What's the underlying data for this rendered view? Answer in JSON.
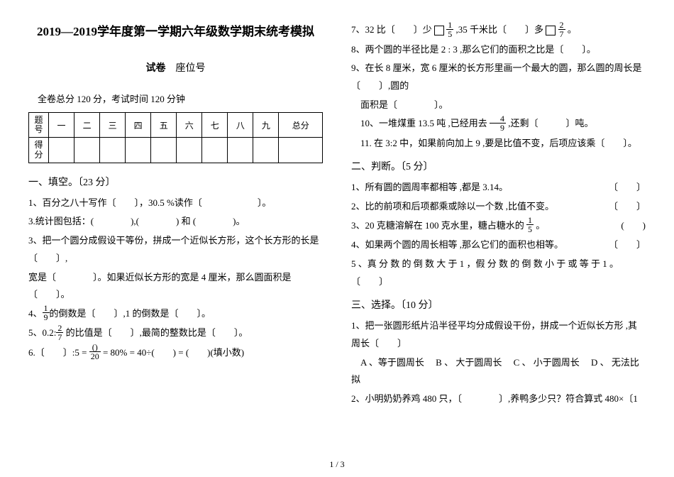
{
  "title": "2019—2019学年度第一学期六年级数学期末统考模拟",
  "subtitle_bold": "试卷",
  "subtitle_rest": "　座位号",
  "info": "全卷总分 120 分，考试时间 120 分钟",
  "score_table": {
    "row1_label": "题号",
    "cols": [
      "一",
      "二",
      "三",
      "四",
      "五",
      "六",
      "七",
      "八",
      "九",
      "总分"
    ],
    "row2_label": "得分"
  },
  "left": {
    "sec1": "一、填空。〔23 分〕",
    "q1": "1、百分之八十写作〔　　〕，30.5 %读作〔　　　　　　〕。",
    "q3stat": "3.统计图包括：(　　　　),(　　　　) 和 (　　　　)。",
    "q3": "3、把一个圆分成假设干等份，拼成一个近似长方形，这个长方形的长是〔　　〕,",
    "q3b": "宽是〔　　　　〕。如果近似长方形的宽是 4 厘米，那么圆面积是〔　　〕。",
    "q4_pre": "4、",
    "q4_frac_n": "1",
    "q4_frac_d": "9",
    "q4_post": "的倒数是〔　　〕,1 的倒数是〔　　〕。",
    "q5_pre": "5、0.2:",
    "q5_frac_n": "2",
    "q5_frac_d": "7",
    "q5_post": " 的比值是〔　　〕,最简的整数比是〔　　〕。",
    "q6_pre": "6.〔　　〕:5 = ",
    "q6_frac_n": "()",
    "q6_frac_d": "20",
    "q6_post": " = 80% = 40÷(　　) = (　　)(填小数)"
  },
  "right": {
    "q7_pre": "7、32 比〔　　〕少 ",
    "q7_f1n": "1",
    "q7_f1d": "5",
    "q7_mid": " ,35 千米比〔　　〕多 ",
    "q7_f2n": "2",
    "q7_f2d": "7",
    "q7_post": " 。",
    "q8": "8、两个圆的半径比是 2 : 3 ,那么它们的面积之比是〔　　〕。",
    "q9a": "9、在长 8 厘米，宽 6 厘米的长方形里画一个最大的圆，那么圆的周长是〔　　〕,圆的",
    "q9b": "面积是〔　　　　〕。",
    "q10_pre": "10、一堆煤重 13.5 吨 ,已经用去 ",
    "q10_fn": "4",
    "q10_fd": "9",
    "q10_post": " ,还剩〔　　　〕吨。",
    "q11": "11. 在 3:2 中，如果前向加上 9 ,要是比值不变，后项应该乘〔　　〕。",
    "sec2": "二、判断。〔5 分〕",
    "j1": "1、所有圆的圆周率都相等 ,都是 3.14。",
    "j1r": "〔　　〕",
    "j2": "2、比的前项和后项都乘或除以一个数 ,比值不变。",
    "j2r": "〔　　〕",
    "j3_pre": "3、20 克糖溶解在 100 克水里，糖占糖水的 ",
    "j3_fn": "1",
    "j3_fd": "5",
    "j3_post": " 。",
    "j3r": "(　　)",
    "j4": "4、如果两个圆的周长相等 ,那么它们的面积也相等。",
    "j4r": "〔　　〕",
    "j5": "5 、真 分 数 的 倒 数 大 于 1 ，假 分 数 的 倒 数 小 于 或 等 于 1 。〔　　〕",
    "sec3": "三、选择。〔10 分〕",
    "x1a": "1、把一张圆形纸片沿半径平均分成假设干份，拼成一个近似长方形 ,其周长〔　　〕",
    "x1b": "　A 、等于圆周长 　B 、 大于圆周长 　C 、 小于圆周长 　D 、 无法比拟",
    "x2": "2、小明奶奶养鸡 480 只，〔　　　　〕,养鸭多少只？符合算式 480×〔1"
  },
  "pgnum": "1 / 3"
}
